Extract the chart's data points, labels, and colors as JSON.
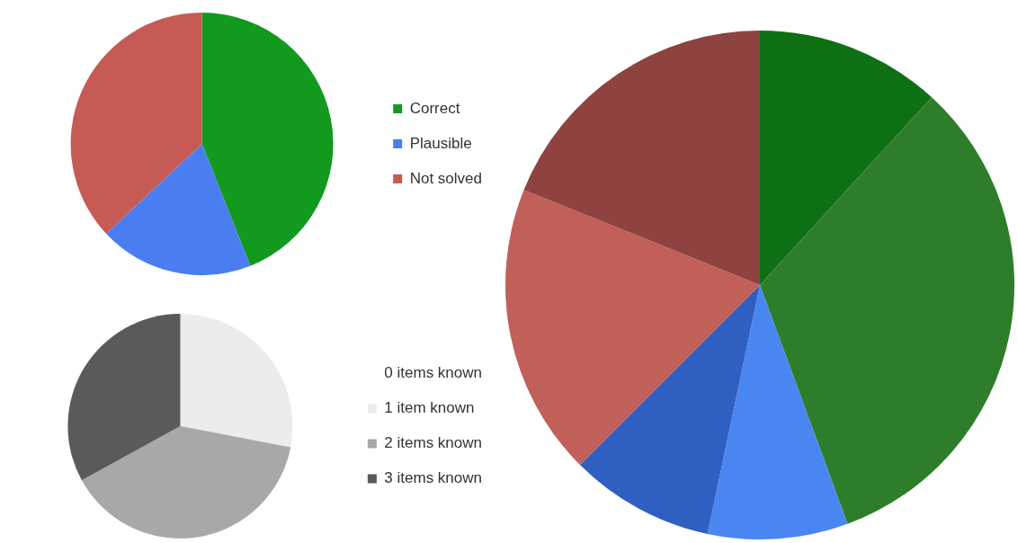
{
  "chart_data": [
    {
      "type": "pie",
      "categories": [
        "Correct",
        "Plausible",
        "Not solved"
      ],
      "values": [
        44,
        19,
        37
      ],
      "colors": [
        "#119a1e",
        "#4a7ef0",
        "#c65a55"
      ],
      "legend": "right"
    },
    {
      "type": "pie",
      "categories": [
        "0 items known",
        "1 item known",
        "2 items known",
        "3 items known"
      ],
      "values": [
        0,
        28,
        39,
        33
      ],
      "colors": [
        "#ffffff",
        "#ececec",
        "#a8a8a8",
        "#5a5a5a"
      ],
      "legend": "right"
    },
    {
      "type": "pie",
      "categories": [
        null,
        null,
        null,
        null,
        null,
        null
      ],
      "values": [
        11.8,
        32.6,
        8.9,
        9.2,
        18.6,
        18.9
      ],
      "colors": [
        "#0e7015",
        "#2e7d2a",
        "#4a86f2",
        "#2f5fc0",
        "#c06058",
        "#8e4340"
      ],
      "legend": false
    }
  ]
}
